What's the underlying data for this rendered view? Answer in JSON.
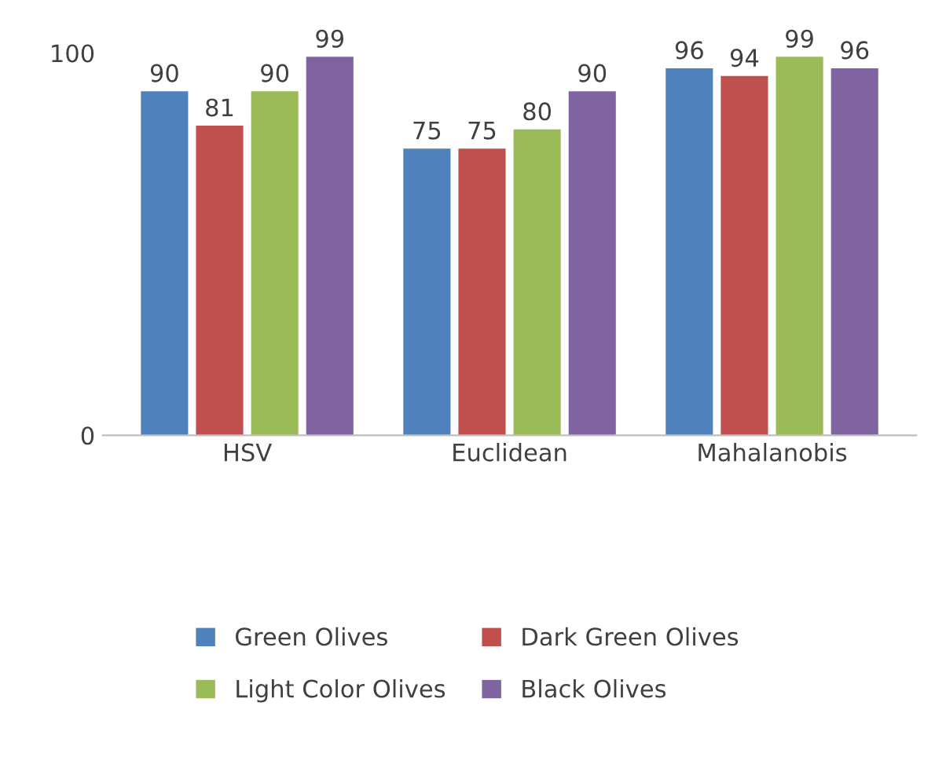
{
  "chart_data": {
    "type": "bar",
    "categories": [
      "HSV",
      "Euclidean",
      "Mahalanobis"
    ],
    "series": [
      {
        "name": "Green Olives",
        "color": "#4f81bd",
        "values": [
          90,
          75,
          96
        ]
      },
      {
        "name": "Dark Green Olives",
        "color": "#c0504d",
        "values": [
          81,
          75,
          94
        ]
      },
      {
        "name": "Light Color Olives",
        "color": "#9bbb59",
        "values": [
          90,
          80,
          99
        ]
      },
      {
        "name": "Black Olives",
        "color": "#8064a2",
        "values": [
          99,
          90,
          96
        ]
      }
    ],
    "ylim": [
      0,
      100
    ],
    "yticks": [
      0,
      100
    ],
    "grid": false,
    "legend": "bottom",
    "data_labels": true
  }
}
